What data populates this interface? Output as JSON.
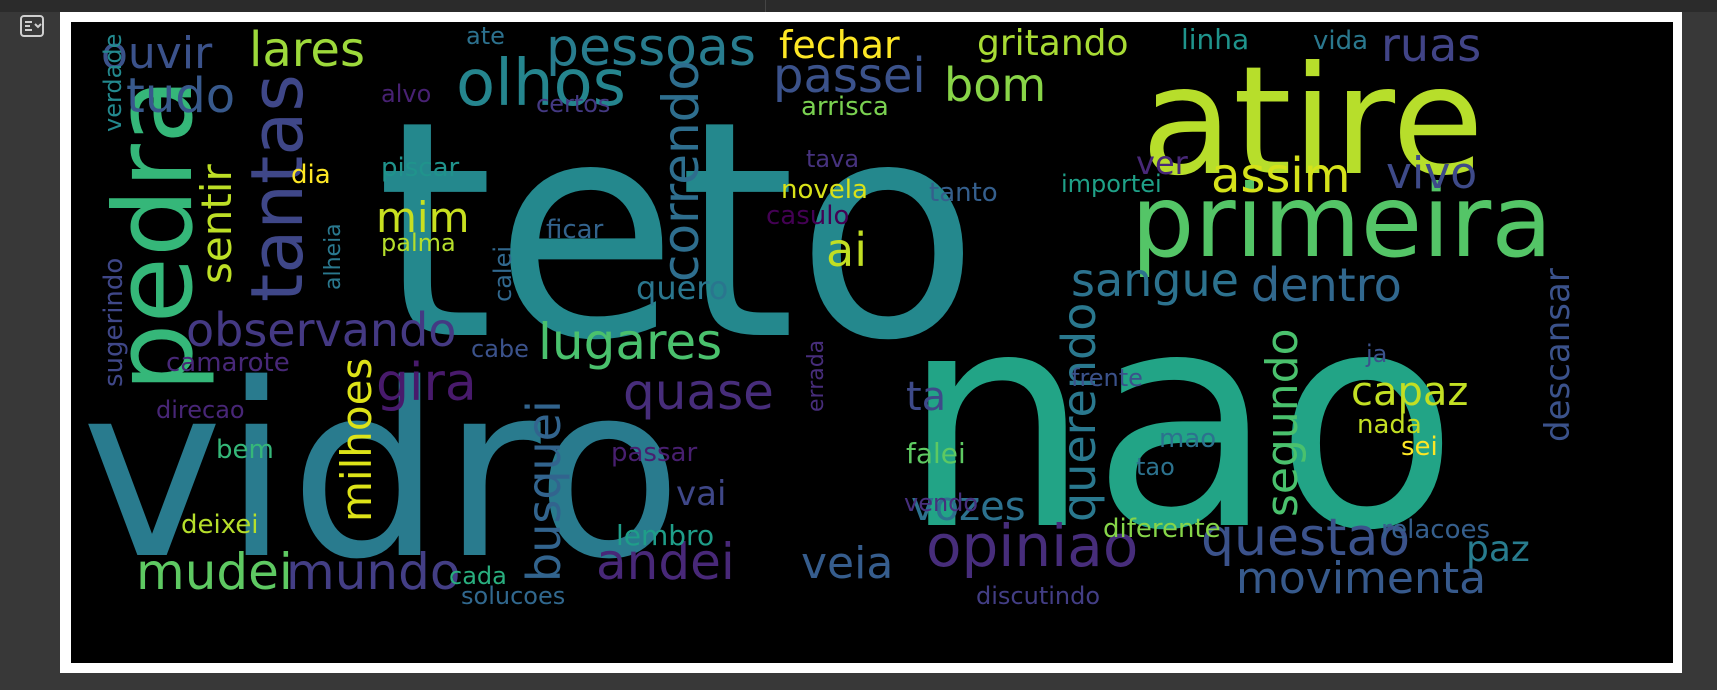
{
  "toolbar": {
    "toggle_icon": "output-toggle-icon"
  },
  "wordcloud": {
    "words": [
      {
        "text": "teto",
        "color": "#24888d"
      },
      {
        "text": "nao",
        "color": "#22a486"
      },
      {
        "text": "vidro",
        "color": "#297b8e"
      },
      {
        "text": "atire",
        "color": "#b7de2b"
      },
      {
        "text": "primeira",
        "color": "#54c567"
      },
      {
        "text": "pedra",
        "color": "#35b779"
      },
      {
        "text": "tantas",
        "color": "#3f4788"
      },
      {
        "text": "olhos",
        "color": "#25858e"
      },
      {
        "text": "pessoas",
        "color": "#287c8e"
      },
      {
        "text": "lares",
        "color": "#9dd93b"
      },
      {
        "text": "ouvir",
        "color": "#3b528b"
      },
      {
        "text": "tudo",
        "color": "#38598c"
      },
      {
        "text": "sentir",
        "color": "#bddf26"
      },
      {
        "text": "fechar",
        "color": "#fde725"
      },
      {
        "text": "passei",
        "color": "#3b528b"
      },
      {
        "text": "bom",
        "color": "#89d548"
      },
      {
        "text": "gritando",
        "color": "#a8db34"
      },
      {
        "text": "linha",
        "color": "#1f948c"
      },
      {
        "text": "vida",
        "color": "#2a788e"
      },
      {
        "text": "ruas",
        "color": "#414487"
      },
      {
        "text": "ate",
        "color": "#2c718e"
      },
      {
        "text": "correndo",
        "color": "#2e6e8e"
      },
      {
        "text": "assim",
        "color": "#d5e21a"
      },
      {
        "text": "vivo",
        "color": "#3e4a89"
      },
      {
        "text": "mim",
        "color": "#c8e020"
      },
      {
        "text": "observando",
        "color": "#443983"
      },
      {
        "text": "ai",
        "color": "#c2df23"
      },
      {
        "text": "sangue",
        "color": "#2c728e"
      },
      {
        "text": "dentro",
        "color": "#31688e"
      },
      {
        "text": "lugares",
        "color": "#4ac16d"
      },
      {
        "text": "gira",
        "color": "#481a6c"
      },
      {
        "text": "milhoes",
        "color": "#dde318"
      },
      {
        "text": "quase",
        "color": "#472d7b"
      },
      {
        "text": "busquei",
        "color": "#32648e"
      },
      {
        "text": "querendo",
        "color": "#2a788e"
      },
      {
        "text": "segundo",
        "color": "#4ac16d"
      },
      {
        "text": "capaz",
        "color": "#c2df23"
      },
      {
        "text": "descansar",
        "color": "#3b528b"
      },
      {
        "text": "mudei",
        "color": "#5ec962"
      },
      {
        "text": "mundo",
        "color": "#433e85"
      },
      {
        "text": "andei",
        "color": "#482878"
      },
      {
        "text": "veia",
        "color": "#365d8d"
      },
      {
        "text": "opiniao",
        "color": "#472d7b"
      },
      {
        "text": "questao",
        "color": "#3b528b"
      },
      {
        "text": "movimenta",
        "color": "#375a8c"
      },
      {
        "text": "vozes",
        "color": "#2c718e"
      },
      {
        "text": "paz",
        "color": "#287c8e"
      },
      {
        "text": "ta",
        "color": "#3e4a89"
      },
      {
        "text": "quero",
        "color": "#2a768e"
      },
      {
        "text": "verdade",
        "color": "#23898e"
      },
      {
        "text": "alvo",
        "color": "#482173"
      },
      {
        "text": "certos",
        "color": "#443983"
      },
      {
        "text": "arrisca",
        "color": "#7ad151"
      },
      {
        "text": "piscar",
        "color": "#20938c"
      },
      {
        "text": "dia",
        "color": "#fde725"
      },
      {
        "text": "tava",
        "color": "#46327e"
      },
      {
        "text": "novela",
        "color": "#d8e219"
      },
      {
        "text": "tanto",
        "color": "#355f8d"
      },
      {
        "text": "importei",
        "color": "#1fa188"
      },
      {
        "text": "ver",
        "color": "#482878"
      },
      {
        "text": "casulo",
        "color": "#440154"
      },
      {
        "text": "ficar",
        "color": "#33638d"
      },
      {
        "text": "palma",
        "color": "#b5de2b"
      },
      {
        "text": "alheia",
        "color": "#2a788e"
      },
      {
        "text": "calei",
        "color": "#31688e"
      },
      {
        "text": "sugerindo",
        "color": "#3f4788"
      },
      {
        "text": "camarote",
        "color": "#482878"
      },
      {
        "text": "cabe",
        "color": "#3b528b"
      },
      {
        "text": "errada",
        "color": "#472d7b"
      },
      {
        "text": "direcao",
        "color": "#482677"
      },
      {
        "text": "bem",
        "color": "#35b779"
      },
      {
        "text": "deixei",
        "color": "#b5de2b"
      },
      {
        "text": "passar",
        "color": "#481f70"
      },
      {
        "text": "vai",
        "color": "#3f4788"
      },
      {
        "text": "lembro",
        "color": "#1f9e89"
      },
      {
        "text": "cada",
        "color": "#29af7f"
      },
      {
        "text": "solucoes",
        "color": "#31688e"
      },
      {
        "text": "falei",
        "color": "#5ec962"
      },
      {
        "text": "vendo",
        "color": "#472f7d"
      },
      {
        "text": "diferente",
        "color": "#86d549"
      },
      {
        "text": "discutindo",
        "color": "#433e85"
      },
      {
        "text": "frente",
        "color": "#3b528b"
      },
      {
        "text": "mao",
        "color": "#2c728e"
      },
      {
        "text": "tao",
        "color": "#2c728e"
      },
      {
        "text": "ja",
        "color": "#3b528b"
      },
      {
        "text": "nada",
        "color": "#c2df23"
      },
      {
        "text": "sei",
        "color": "#fde725"
      },
      {
        "text": "relacoes",
        "color": "#355f8d"
      }
    ]
  }
}
